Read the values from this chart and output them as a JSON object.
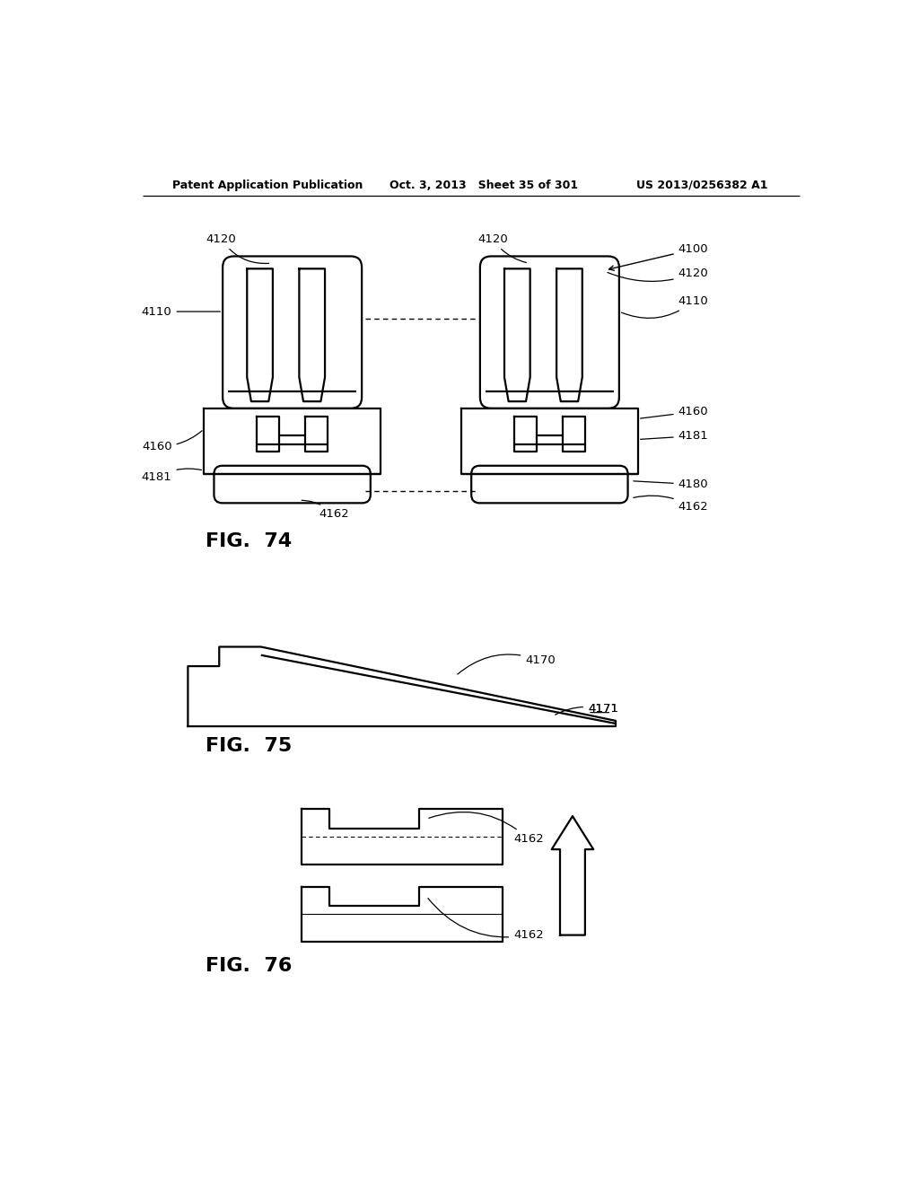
{
  "background_color": "#ffffff",
  "header_left": "Patent Application Publication",
  "header_mid": "Oct. 3, 2013   Sheet 35 of 301",
  "header_right": "US 2013/0256382 A1",
  "fig74_label": "FIG.  74",
  "fig75_label": "FIG.  75",
  "fig76_label": "FIG.  76",
  "line_color": "#000000",
  "line_width": 1.6,
  "annotation_fontsize": 9.5,
  "header_fontsize": 9,
  "fig_label_fontsize": 16
}
